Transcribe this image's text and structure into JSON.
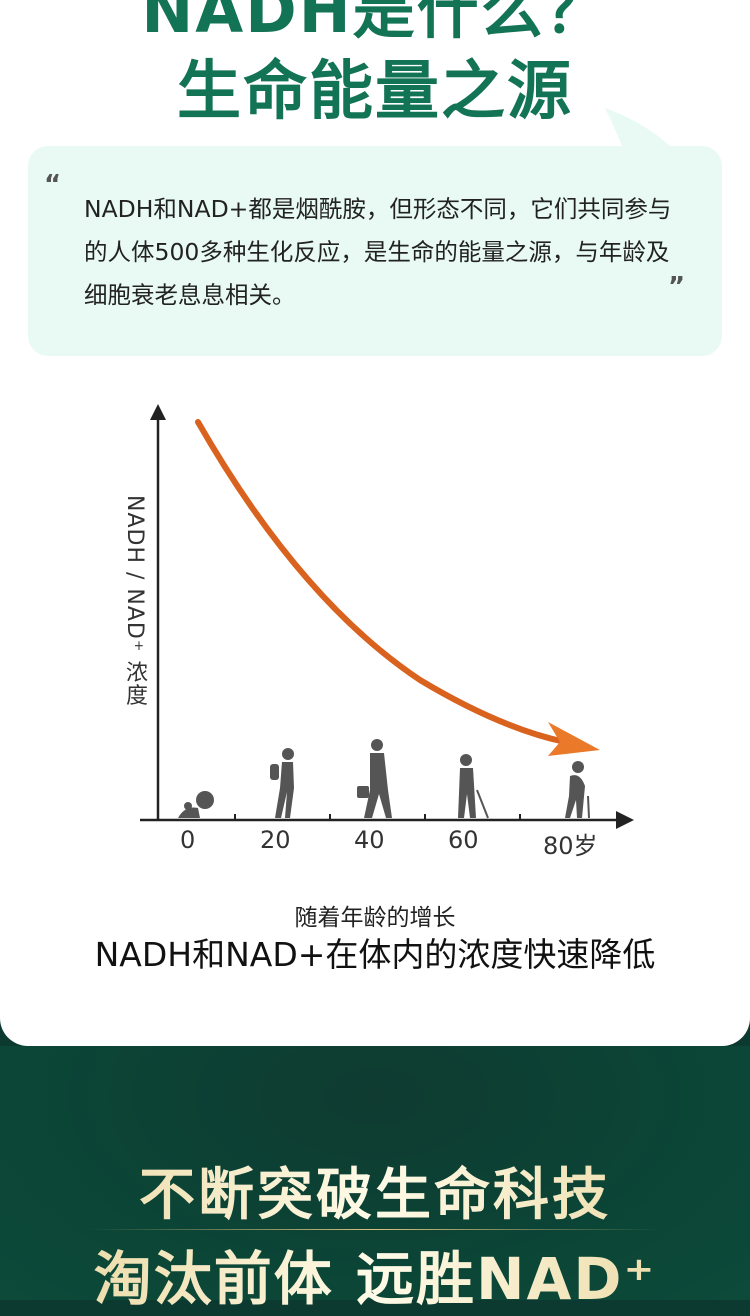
{
  "header": {
    "title_line1": "NADH是什么？",
    "title_line2": "生命能量之源"
  },
  "intro": {
    "open_quote": "“",
    "close_quote": "”",
    "text": "NADH和NAD+都是烟酰胺，但形态不同，它们共同参与的人体500多种生化反应，是生命的能量之源，与年龄及细胞衰老息息相关。"
  },
  "chart": {
    "ylabel": "NADH / NAD⁺ 浓度",
    "ticks": [
      "0",
      "20",
      "40",
      "60",
      "80岁"
    ],
    "curve_color": "#d9621f",
    "trend": "decreasing"
  },
  "caption": {
    "line1": "随着年龄的增长",
    "line2": "NADH和NAD+在体内的浓度快速降低"
  },
  "banner": {
    "line1": "不断突破生命科技",
    "line2": "淘汰前体 远胜NAD⁺"
  },
  "colors": {
    "title_green": "#137355",
    "bubble_bg": "#e8faf3",
    "bottom_bg": "#0d3a30",
    "gold": "#e8d49a"
  }
}
